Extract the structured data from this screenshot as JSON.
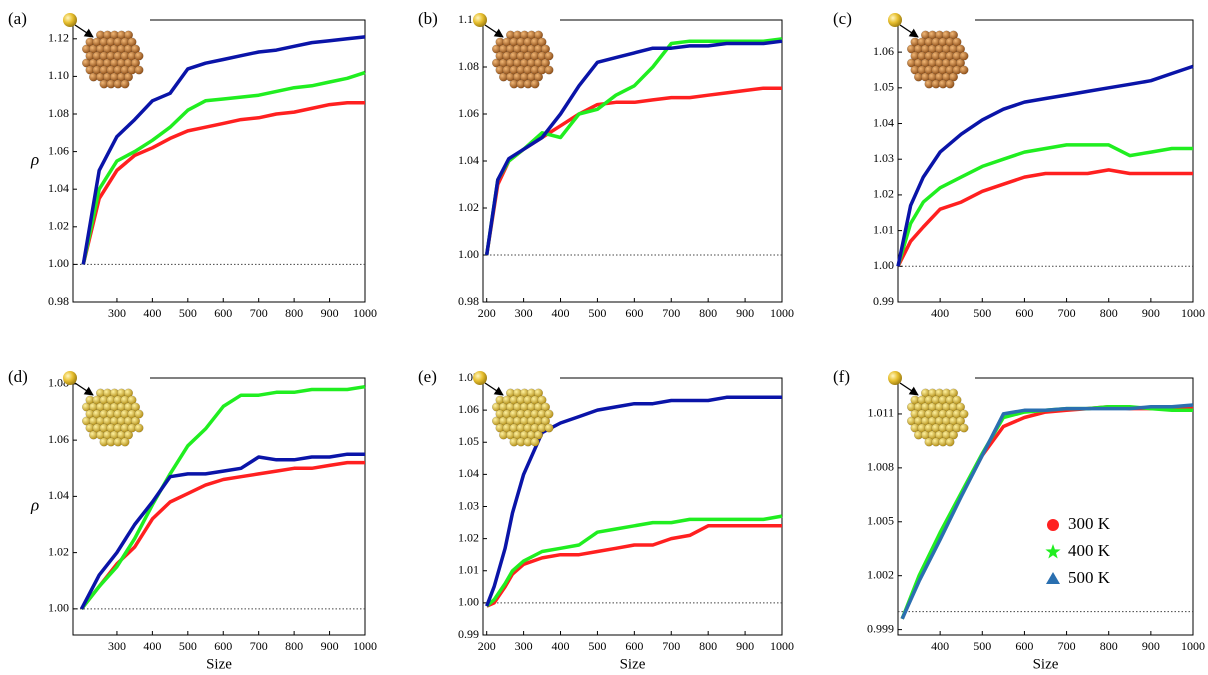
{
  "chart_data": [
    {
      "type": "line",
      "label": "(a)",
      "ylabel": "ρ",
      "hline": 1,
      "x": [
        205,
        250,
        300,
        350,
        400,
        450,
        500,
        550,
        600,
        650,
        700,
        750,
        800,
        850,
        900,
        950,
        1000
      ],
      "xlim": [
        176,
        1000
      ],
      "xticks": [
        300,
        400,
        500,
        600,
        700,
        800,
        900,
        1000
      ],
      "ylim": [
        0.98,
        1.13
      ],
      "yticks": [
        0.98,
        {
          "value": 1,
          "label": "1.00"
        },
        1.02,
        1.04,
        1.06,
        1.08,
        {
          "value": 1.1,
          "label": "1.10"
        },
        1.12
      ],
      "series": [
        {
          "color": "#ff2020",
          "values": [
            1.0,
            1.035,
            1.05,
            1.058,
            1.062,
            1.067,
            1.071,
            1.073,
            1.075,
            1.077,
            1.078,
            1.08,
            1.081,
            1.083,
            1.085,
            1.086,
            1.086
          ]
        },
        {
          "color": "#20ee20",
          "values": [
            1.0,
            1.04,
            1.055,
            1.06,
            1.066,
            1.073,
            1.082,
            1.087,
            1.088,
            1.089,
            1.09,
            1.092,
            1.094,
            1.095,
            1.097,
            1.099,
            1.102
          ]
        },
        {
          "color": "#0a14a8",
          "values": [
            1.0,
            1.05,
            1.068,
            1.077,
            1.087,
            1.091,
            1.104,
            1.107,
            1.109,
            1.111,
            1.113,
            1.114,
            1.116,
            1.118,
            1.119,
            1.12,
            1.121
          ]
        }
      ]
    },
    {
      "type": "line",
      "label": "(b)",
      "hline": 1,
      "x": [
        200,
        230,
        260,
        300,
        350,
        400,
        450,
        500,
        550,
        600,
        650,
        700,
        750,
        800,
        850,
        900,
        950,
        1000
      ],
      "xlim": [
        190,
        1000
      ],
      "xticks": [
        200,
        300,
        400,
        500,
        600,
        700,
        800,
        900,
        1000
      ],
      "ylim": [
        0.98,
        1.1
      ],
      "yticks": [
        0.98,
        {
          "value": 1,
          "label": "1.00"
        },
        1.02,
        1.04,
        1.06,
        1.08,
        {
          "value": 1.1,
          "label": "1.10"
        }
      ],
      "series": [
        {
          "color": "#ff2020",
          "values": [
            1.0,
            1.03,
            1.04,
            1.045,
            1.05,
            1.055,
            1.06,
            1.064,
            1.065,
            1.065,
            1.066,
            1.067,
            1.067,
            1.068,
            1.069,
            1.07,
            1.071,
            1.071
          ]
        },
        {
          "color": "#20ee20",
          "values": [
            1.0,
            1.032,
            1.04,
            1.045,
            1.052,
            1.05,
            1.06,
            1.062,
            1.068,
            1.072,
            1.08,
            1.09,
            1.091,
            1.091,
            1.091,
            1.091,
            1.091,
            1.092
          ]
        },
        {
          "color": "#0a14a8",
          "values": [
            1.0,
            1.032,
            1.041,
            1.045,
            1.05,
            1.06,
            1.072,
            1.082,
            1.084,
            1.086,
            1.088,
            1.088,
            1.089,
            1.089,
            1.09,
            1.09,
            1.09,
            1.091
          ]
        }
      ]
    },
    {
      "type": "line",
      "label": "(c)",
      "hline": 1,
      "x": [
        300,
        330,
        360,
        400,
        450,
        500,
        550,
        600,
        650,
        700,
        750,
        800,
        850,
        900,
        950,
        1000
      ],
      "xlim": [
        300,
        1000
      ],
      "xticks": [
        400,
        500,
        600,
        700,
        800,
        900,
        1000
      ],
      "ylim": [
        0.99,
        1.069
      ],
      "yticks": [
        0.99,
        {
          "value": 1,
          "label": "1.00"
        },
        1.01,
        1.02,
        1.03,
        1.04,
        1.05,
        1.06
      ],
      "series": [
        {
          "color": "#ff2020",
          "values": [
            1.0,
            1.007,
            1.011,
            1.016,
            1.018,
            1.021,
            1.023,
            1.025,
            1.026,
            1.026,
            1.026,
            1.027,
            1.026,
            1.026,
            1.026,
            1.026
          ]
        },
        {
          "color": "#20ee20",
          "values": [
            1.0,
            1.012,
            1.018,
            1.022,
            1.025,
            1.028,
            1.03,
            1.032,
            1.033,
            1.034,
            1.034,
            1.034,
            1.031,
            1.032,
            1.033,
            1.033
          ]
        },
        {
          "color": "#0a14a8",
          "values": [
            1.0,
            1.017,
            1.025,
            1.032,
            1.037,
            1.041,
            1.044,
            1.046,
            1.047,
            1.048,
            1.049,
            1.05,
            1.051,
            1.052,
            1.054,
            1.056
          ]
        }
      ]
    },
    {
      "type": "line",
      "label": "(d)",
      "ylabel": "ρ",
      "xlabel": "Size",
      "hline": 1,
      "x": [
        200,
        250,
        300,
        350,
        400,
        450,
        500,
        550,
        600,
        650,
        700,
        750,
        800,
        850,
        900,
        950,
        1000
      ],
      "xlim": [
        176,
        1000
      ],
      "xticks": [
        300,
        400,
        500,
        600,
        700,
        800,
        900,
        1000
      ],
      "ylim": [
        0.9907,
        1.0821
      ],
      "yticks": [
        {
          "value": 1,
          "label": "1.00"
        },
        1.02,
        1.04,
        1.06,
        1.08
      ],
      "series": [
        {
          "color": "#ff2020",
          "values": [
            1.0,
            1.008,
            1.016,
            1.022,
            1.032,
            1.038,
            1.041,
            1.044,
            1.046,
            1.047,
            1.048,
            1.049,
            1.05,
            1.05,
            1.051,
            1.052,
            1.052
          ]
        },
        {
          "color": "#20ee20",
          "values": [
            1.0,
            1.008,
            1.015,
            1.025,
            1.037,
            1.048,
            1.058,
            1.064,
            1.072,
            1.076,
            1.076,
            1.077,
            1.077,
            1.078,
            1.078,
            1.078,
            1.079
          ]
        },
        {
          "color": "#0a14a8",
          "values": [
            1.0,
            1.012,
            1.02,
            1.03,
            1.038,
            1.047,
            1.048,
            1.048,
            1.049,
            1.05,
            1.054,
            1.053,
            1.053,
            1.054,
            1.054,
            1.055,
            1.055
          ]
        }
      ]
    },
    {
      "type": "line",
      "label": "(e)",
      "xlabel": "Size",
      "hline": 1,
      "x": [
        200,
        220,
        250,
        270,
        300,
        350,
        400,
        450,
        500,
        550,
        600,
        650,
        700,
        750,
        800,
        850,
        900,
        950,
        1000
      ],
      "xlim": [
        190,
        1000
      ],
      "xticks": [
        200,
        300,
        400,
        500,
        600,
        700,
        800,
        900,
        1000
      ],
      "ylim": [
        0.99,
        1.07
      ],
      "yticks": [
        0.99,
        {
          "value": 1,
          "label": "1.00"
        },
        1.01,
        1.02,
        1.03,
        1.04,
        1.05,
        1.06,
        1.07
      ],
      "series": [
        {
          "color": "#ff2020",
          "values": [
            0.999,
            1.0,
            1.005,
            1.009,
            1.012,
            1.014,
            1.015,
            1.015,
            1.016,
            1.017,
            1.018,
            1.018,
            1.02,
            1.021,
            1.024,
            1.024,
            1.024,
            1.024,
            1.024
          ]
        },
        {
          "color": "#20ee20",
          "values": [
            0.999,
            1.001,
            1.006,
            1.01,
            1.013,
            1.016,
            1.017,
            1.018,
            1.022,
            1.023,
            1.024,
            1.025,
            1.025,
            1.026,
            1.026,
            1.026,
            1.026,
            1.026,
            1.027
          ]
        },
        {
          "color": "#0a14a8",
          "values": [
            0.999,
            1.005,
            1.017,
            1.028,
            1.04,
            1.053,
            1.056,
            1.058,
            1.06,
            1.061,
            1.062,
            1.062,
            1.063,
            1.063,
            1.063,
            1.064,
            1.064,
            1.064,
            1.064
          ]
        }
      ]
    },
    {
      "type": "line",
      "label": "(f)",
      "xlabel": "Size",
      "hline": 1,
      "legend": "lower right",
      "x": [
        310,
        350,
        400,
        450,
        500,
        550,
        600,
        650,
        700,
        750,
        800,
        850,
        900,
        950,
        1000
      ],
      "xlim": [
        300,
        1000
      ],
      "xticks": [
        400,
        500,
        600,
        700,
        800,
        900,
        1000
      ],
      "ylim": [
        0.9987,
        1.013
      ],
      "yticks": [
        0.999,
        1.002,
        1.005,
        1.008,
        1.011
      ],
      "series": [
        {
          "name": "300 K",
          "marker": "circle",
          "color": "#ff2020",
          "values": [
            0.9996,
            1.0018,
            1.0042,
            1.0065,
            1.0087,
            1.0103,
            1.0108,
            1.0111,
            1.0112,
            1.0113,
            1.0114,
            1.0113,
            1.0113,
            1.0113,
            1.0114
          ]
        },
        {
          "name": "400 K",
          "marker": "star",
          "color": "#20ee20",
          "values": [
            0.9996,
            1.002,
            1.0044,
            1.0066,
            1.0088,
            1.0108,
            1.0111,
            1.0112,
            1.0113,
            1.0113,
            1.0114,
            1.0114,
            1.0113,
            1.0112,
            1.0112
          ]
        },
        {
          "name": "500 K",
          "marker": "triangle",
          "color": "#2a6fb0",
          "values": [
            0.9996,
            1.0017,
            1.004,
            1.0064,
            1.0087,
            1.011,
            1.0112,
            1.0112,
            1.0113,
            1.0113,
            1.0113,
            1.0113,
            1.0114,
            1.0114,
            1.0115
          ]
        }
      ]
    }
  ]
}
